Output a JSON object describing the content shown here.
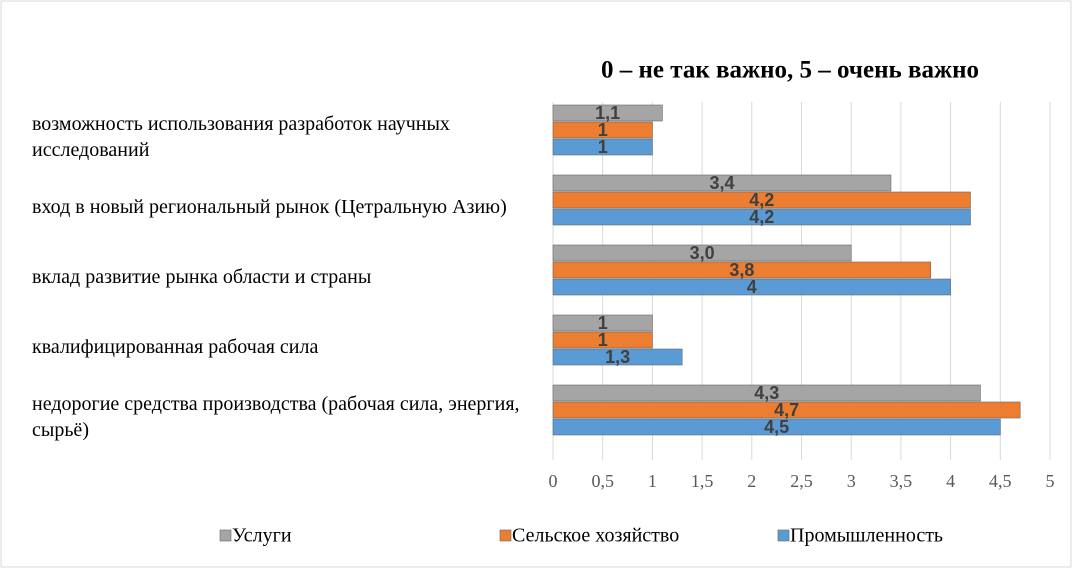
{
  "chart_data": {
    "type": "bar",
    "orientation": "horizontal",
    "title": "0 – не так важно, 5 – очень важно",
    "categories": [
      "возможность использования разработок научных исследований",
      "вход в новый региональный рынок (Цетральную Азию)",
      "вклад развитие рынка области и страны",
      "квалифицированная рабочая сила",
      "недорогие средства производства (рабочая сила, энергия, сырьё)"
    ],
    "series": [
      {
        "name": "Услуги",
        "color": "#a5a5a5",
        "values": [
          1.1,
          3.4,
          3.0,
          1,
          4.3
        ],
        "value_labels": [
          "1,1",
          "3,4",
          "3,0",
          "1",
          "4,3"
        ]
      },
      {
        "name": "Сельское хозяйство",
        "color": "#ed7d31",
        "values": [
          1,
          4.2,
          3.8,
          1,
          4.7
        ],
        "value_labels": [
          "1",
          "4,2",
          "3,8",
          "1",
          "4,7"
        ]
      },
      {
        "name": "Промышленность",
        "color": "#5b9bd5",
        "values": [
          1,
          4.2,
          4,
          1.3,
          4.5
        ],
        "value_labels": [
          "1",
          "4,2",
          "4",
          "1,3",
          "4,5"
        ]
      }
    ],
    "xlim": [
      0,
      5
    ],
    "xticks": [
      0,
      {
        "value": 0.5,
        "label": "0,5"
      },
      1,
      {
        "value": 1.5,
        "label": "1,5"
      },
      2,
      {
        "value": 2.5,
        "label": "2,5"
      },
      3,
      {
        "value": 3.5,
        "label": "3,5"
      },
      4,
      {
        "value": 4.5,
        "label": "4,5"
      },
      5
    ],
    "grid": true,
    "legend": "bottom"
  }
}
